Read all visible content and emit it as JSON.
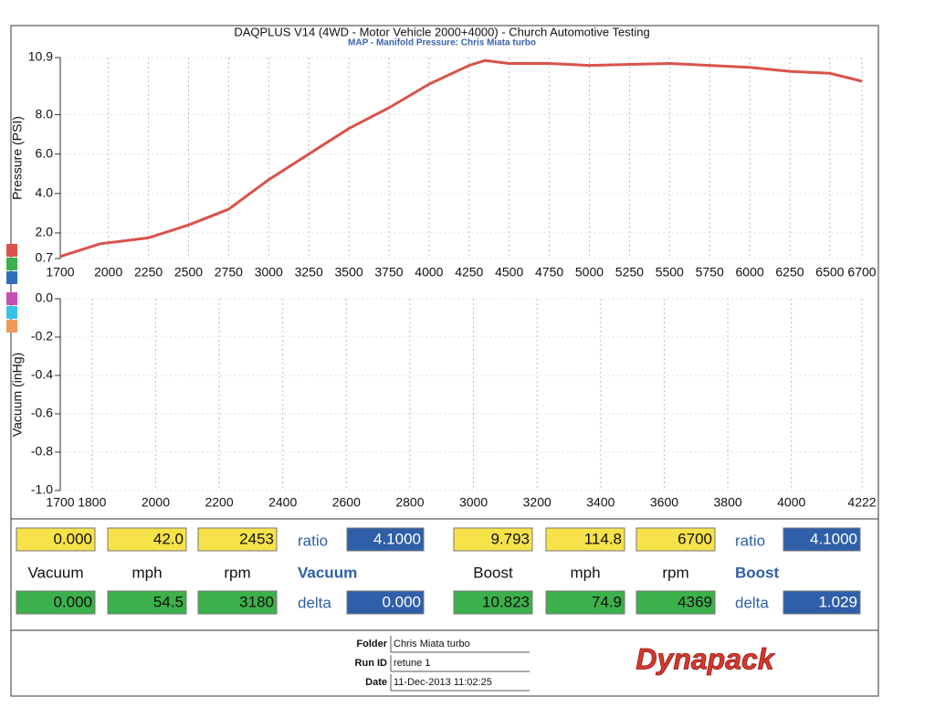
{
  "chart_data": [
    {
      "type": "line",
      "title": "DAQPLUS V14 (4WD - Motor Vehicle 2000+4000) - Church Automotive Testing",
      "subtitle": "MAP - Manifold Pressure: Chris Miata turbo",
      "y_label": "Pressure (PSI)",
      "color": "#d9534a",
      "x": [
        1700,
        1950,
        2250,
        2500,
        2750,
        3000,
        3250,
        3500,
        3750,
        4000,
        4250,
        4350,
        4500,
        4750,
        5000,
        5250,
        5500,
        5750,
        6000,
        6250,
        6500,
        6700
      ],
      "values": [
        0.8,
        1.45,
        1.75,
        2.4,
        3.2,
        4.7,
        6.0,
        7.3,
        8.35,
        9.55,
        10.5,
        10.75,
        10.6,
        10.6,
        10.5,
        10.55,
        10.6,
        10.5,
        10.4,
        10.2,
        10.1,
        9.7
      ],
      "xlim": [
        1700,
        6700
      ],
      "xticks": [
        1700,
        2000,
        2250,
        2500,
        2750,
        3000,
        3250,
        3500,
        3750,
        4000,
        4250,
        4500,
        4750,
        5000,
        5250,
        5500,
        5750,
        6000,
        6250,
        6500,
        6700
      ],
      "ylim": [
        0.7,
        10.9
      ],
      "yticks": [
        0.7,
        {
          "value": 2,
          "label": "2.0"
        },
        {
          "value": 4,
          "label": "4.0"
        },
        {
          "value": 6,
          "label": "6.0"
        },
        {
          "value": 8,
          "label": "8.0"
        },
        10.9
      ],
      "grid": true
    },
    {
      "type": "line",
      "y_label": "Vacuum (inHg)",
      "xlim": [
        1700,
        4222
      ],
      "xticks": [
        1700,
        1800,
        2000,
        2200,
        2400,
        2600,
        2800,
        3000,
        3200,
        3400,
        3600,
        3800,
        4000,
        4222
      ],
      "ylim": [
        -1.0,
        0.0
      ],
      "yticks": [
        {
          "value": -1.0,
          "label": "-1.0"
        },
        {
          "value": -0.8,
          "label": "-0.8"
        },
        {
          "value": -0.6,
          "label": "-0.6"
        },
        {
          "value": -0.4,
          "label": "-0.4"
        },
        {
          "value": -0.2,
          "label": "-0.2"
        },
        {
          "value": 0,
          "label": "0.0"
        }
      ],
      "grid": true
    }
  ],
  "readouts": [
    {
      "top": [
        "0.000",
        "42.0",
        "2453"
      ],
      "ratio_label": "ratio",
      "ratio": "4.1000",
      "labels": [
        "Vacuum",
        "mph",
        "rpm"
      ],
      "mode": "Vacuum",
      "bottom": [
        "0.000",
        "54.5",
        "3180"
      ],
      "delta_label": "delta",
      "delta": "0.000"
    },
    {
      "top": [
        "9.793",
        "114.8",
        "6700"
      ],
      "ratio_label": "ratio",
      "ratio": "4.1000",
      "labels": [
        "Boost",
        "mph",
        "rpm"
      ],
      "mode": "Boost",
      "bottom": [
        "10.823",
        "74.9",
        "4369"
      ],
      "delta_label": "delta",
      "delta": "1.029"
    }
  ],
  "run_info": [
    {
      "label": "Folder",
      "value": "Chris Miata turbo"
    },
    {
      "label": "Run ID",
      "value": "retune 1"
    },
    {
      "label": "Date",
      "value": "11-Dec-2013 11:02:25"
    }
  ],
  "logo": "Dynapack"
}
